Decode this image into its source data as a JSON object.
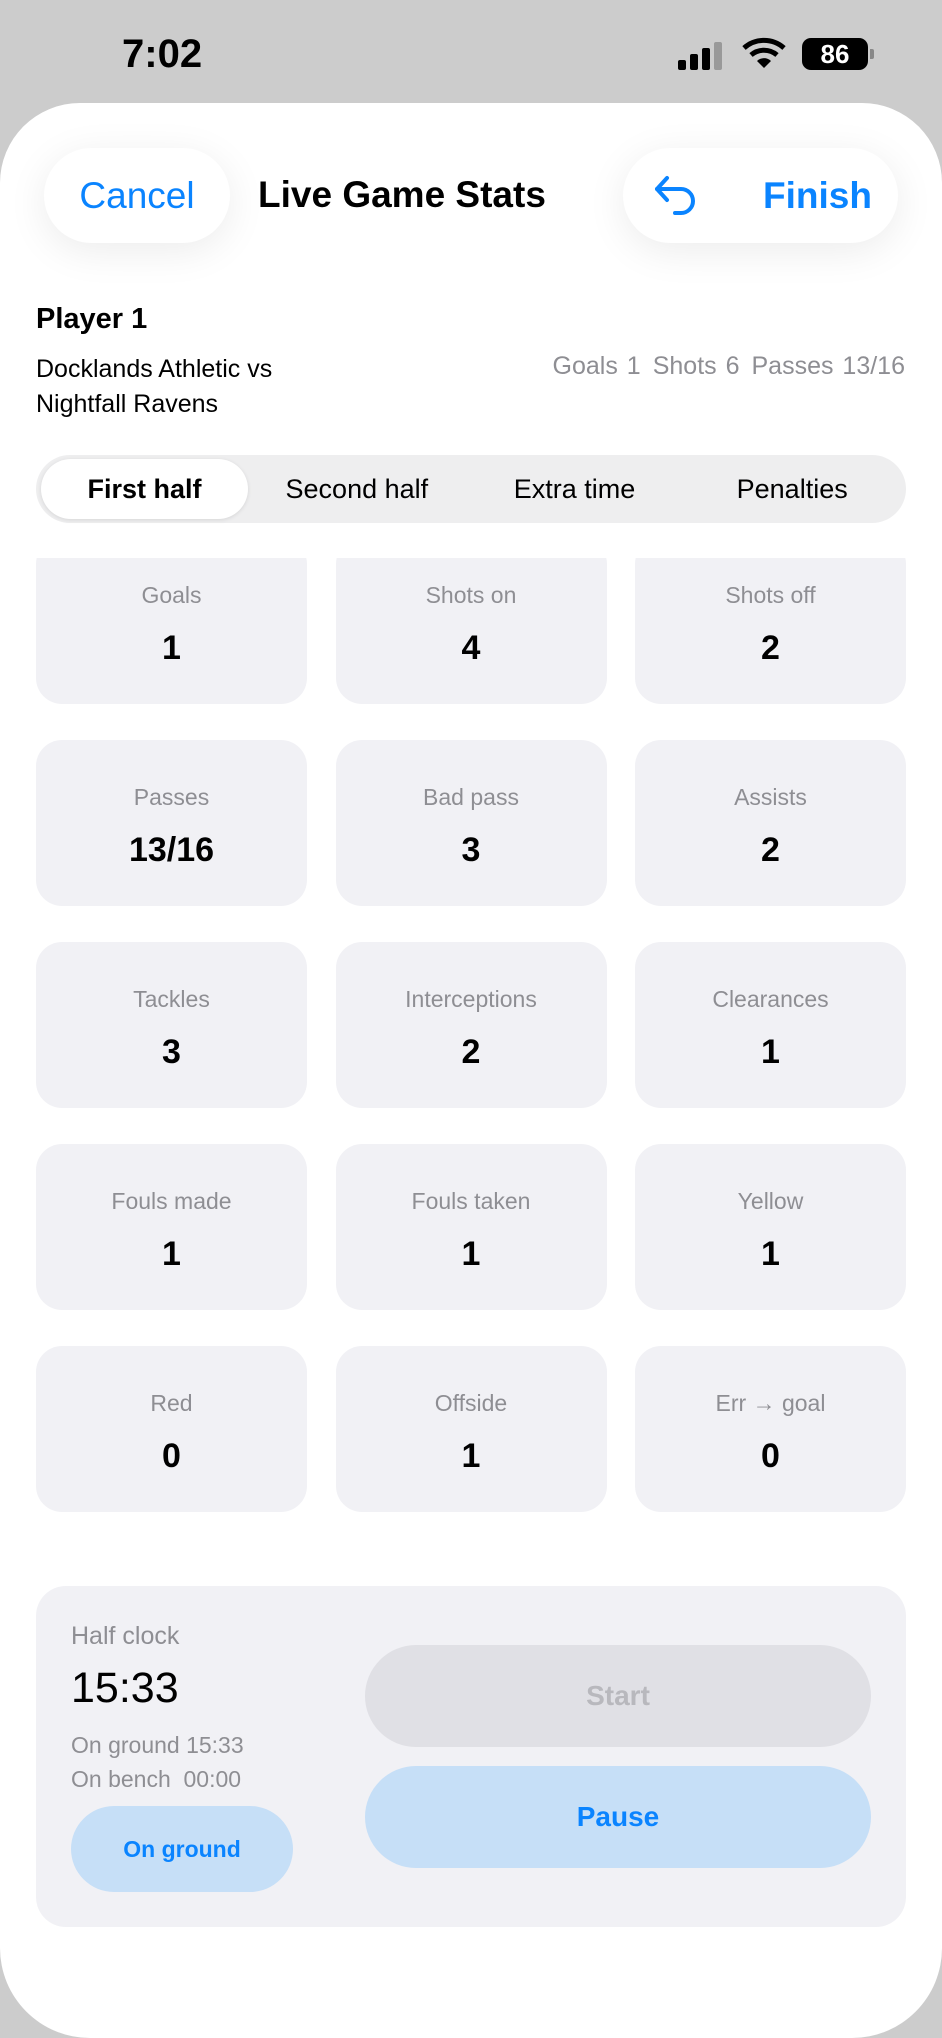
{
  "status_bar": {
    "time": "7:02",
    "battery": "86",
    "icons": [
      "signal-icon",
      "wifi-icon",
      "battery-icon"
    ]
  },
  "header": {
    "cancel": "Cancel",
    "title": "Live Game Stats",
    "undo_icon": "undo-arrow-icon",
    "finish": "Finish"
  },
  "player": {
    "name": "Player 1",
    "match": "Docklands Athletic vs Nightfall Ravens",
    "summary": [
      "Goals 1",
      "Shots 6",
      "Passes 13/16"
    ]
  },
  "tabs": [
    {
      "label": "First half",
      "selected": true
    },
    {
      "label": "Second half"
    },
    {
      "label": "Extra time"
    },
    {
      "label": "Penalties"
    }
  ],
  "stats": [
    {
      "label": "Goals",
      "value": "1"
    },
    {
      "label": "Shots on",
      "value": "4"
    },
    {
      "label": "Shots off",
      "value": "2"
    },
    {
      "label": "Passes",
      "value": "13/16"
    },
    {
      "label": "Bad pass",
      "value": "3"
    },
    {
      "label": "Assists",
      "value": "2"
    },
    {
      "label": "Tackles",
      "value": "3"
    },
    {
      "label": "Interceptions",
      "value": "2"
    },
    {
      "label": "Clearances",
      "value": "1"
    },
    {
      "label": "Fouls made",
      "value": "1"
    },
    {
      "label": "Fouls taken",
      "value": "1"
    },
    {
      "label": "Yellow",
      "value": "1"
    },
    {
      "label": "Red",
      "value": "0"
    },
    {
      "label": "Offside",
      "value": "1"
    },
    {
      "label": "Err → goal",
      "value": "0"
    }
  ],
  "clock": {
    "label": "Half clock",
    "value": "15:33",
    "on_ground": "On ground 15:33",
    "on_bench": "On bench  00:00",
    "toggle": "On ground",
    "start": "Start",
    "pause": "Pause"
  },
  "colors": {
    "accent": "#0a84ff",
    "card": "#f1f1f5",
    "button_tint": "#c6dff7"
  }
}
